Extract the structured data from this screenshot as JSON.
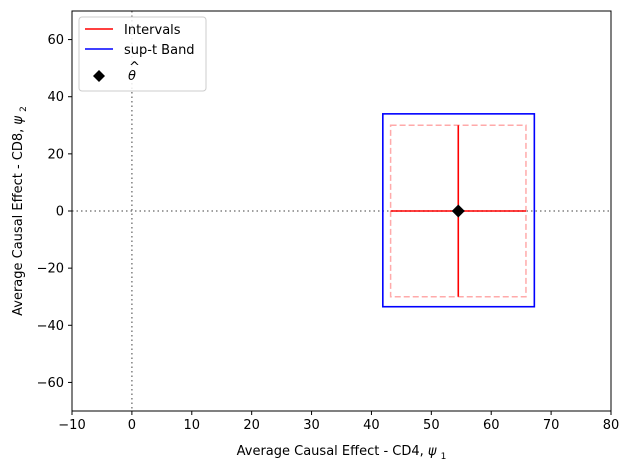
{
  "chart_data": {
    "type": "scatter",
    "title": "",
    "xlabel": "Average Causal Effect - CD4,",
    "xlabel_symbol": "ψ",
    "xlabel_subscript": "1",
    "ylabel": "Average Causal Effect - CD8,",
    "ylabel_symbol": "ψ",
    "ylabel_subscript": "2",
    "xlim": [
      -10,
      80
    ],
    "ylim": [
      -70,
      70
    ],
    "xticks": [
      -10,
      0,
      10,
      20,
      30,
      40,
      50,
      60,
      70,
      80
    ],
    "xtick_labels": [
      "−10",
      "0",
      "10",
      "20",
      "30",
      "40",
      "50",
      "60",
      "70",
      "80"
    ],
    "yticks": [
      -60,
      -40,
      -20,
      0,
      20,
      40,
      60
    ],
    "ytick_labels": [
      "−60",
      "−40",
      "−20",
      "0",
      "20",
      "40",
      "60"
    ],
    "grid": false,
    "reference_lines": {
      "x": 0,
      "y": 0,
      "style": "dotted",
      "color": "#808080"
    },
    "legend": {
      "placement": "upper-left",
      "entries": [
        {
          "label": "Intervals",
          "marker": "line",
          "color": "#ff0000"
        },
        {
          "label": "sup-t Band",
          "marker": "line",
          "color": "#0000ff"
        },
        {
          "label": "θ",
          "label_accent": "^",
          "marker": "diamond",
          "color": "#000000"
        }
      ]
    },
    "point_estimate": {
      "x": 54.5,
      "y": 0
    },
    "intervals": {
      "x": [
        43.2,
        65.8
      ],
      "y": [
        -30,
        30
      ],
      "color": "#ff0000"
    },
    "interval_box": {
      "x": [
        43.2,
        65.8
      ],
      "y": [
        -30,
        30
      ],
      "color": "#ffaaaa",
      "style": "dashed"
    },
    "supt_band": {
      "x": [
        41.9,
        67.2
      ],
      "y": [
        -33.5,
        34
      ],
      "color": "#0000ff"
    }
  }
}
